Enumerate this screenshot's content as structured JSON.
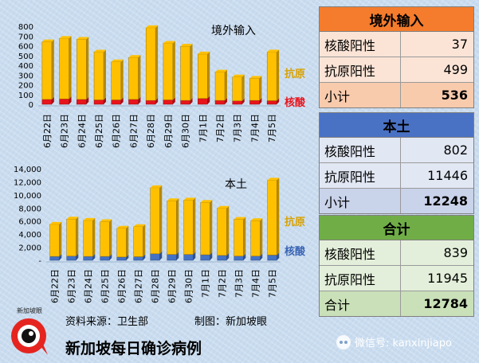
{
  "chart_data": [
    {
      "type": "bar",
      "stacked": true,
      "title": "境外输入",
      "categories": [
        "6月22日",
        "6月23日",
        "6月24日",
        "6月25日",
        "6月26日",
        "6月27日",
        "6月28日",
        "6月29日",
        "6月30日",
        "7月1日",
        "7月2日",
        "7月3日",
        "7月4日",
        "7月5日"
      ],
      "series": [
        {
          "name": "核酸",
          "color": "#e8141c",
          "values": [
            50,
            55,
            50,
            45,
            45,
            50,
            40,
            45,
            40,
            60,
            40,
            35,
            40,
            37
          ]
        },
        {
          "name": "抗原",
          "color": "#ffc000",
          "values": [
            590,
            620,
            615,
            490,
            390,
            430,
            745,
            580,
            555,
            455,
            290,
            245,
            225,
            499
          ]
        }
      ],
      "ylim": [
        0,
        800
      ],
      "yticks": [
        "0",
        "100",
        "200",
        "300",
        "400",
        "500",
        "600",
        "700",
        "800"
      ],
      "legend": "right"
    },
    {
      "type": "bar",
      "stacked": true,
      "title": "本土",
      "categories": [
        "6月22日",
        "6月23日",
        "6月24日",
        "6月25日",
        "6月26日",
        "6月27日",
        "6月28日",
        "6月29日",
        "6月30日",
        "7月1日",
        "7月2日",
        "7月3日",
        "7月4日",
        "7月5日"
      ],
      "series": [
        {
          "name": "核酸",
          "color": "#4472c4",
          "values": [
            600,
            650,
            600,
            600,
            500,
            550,
            1000,
            900,
            900,
            850,
            750,
            650,
            650,
            802
          ]
        },
        {
          "name": "抗原",
          "color": "#ffc000",
          "values": [
            4900,
            5650,
            5500,
            5300,
            4400,
            4600,
            10100,
            8200,
            8300,
            8000,
            7200,
            5600,
            5400,
            11446
          ]
        }
      ],
      "ylim": [
        0,
        14000
      ],
      "yticks": [
        "-",
        "2,000",
        "4,000",
        "6,000",
        "8,000",
        "10,000",
        "12,000",
        "14,000"
      ],
      "legend": "right"
    }
  ],
  "tables": {
    "import": {
      "title": "境外输入",
      "rows": [
        {
          "label": "核酸阳性",
          "value": "37"
        },
        {
          "label": "抗原阳性",
          "value": "499"
        },
        {
          "label": "小计",
          "value": "536"
        }
      ]
    },
    "local": {
      "title": "本土",
      "rows": [
        {
          "label": "核酸阳性",
          "value": "802"
        },
        {
          "label": "抗原阳性",
          "value": "11446"
        },
        {
          "label": "小计",
          "value": "12248"
        }
      ]
    },
    "total": {
      "title": "合计",
      "rows": [
        {
          "label": "核酸阳性",
          "value": "839"
        },
        {
          "label": "抗原阳性",
          "value": "11945"
        },
        {
          "label": "合计",
          "value": "12784"
        }
      ]
    }
  },
  "footer": {
    "source": "资料来源：卫生部",
    "credit": "制图：新加坡眼",
    "main_title": "新加坡每日确诊病例",
    "logo_text": "新加坡眼",
    "watermark": "微信号: kanxinjiapo"
  }
}
